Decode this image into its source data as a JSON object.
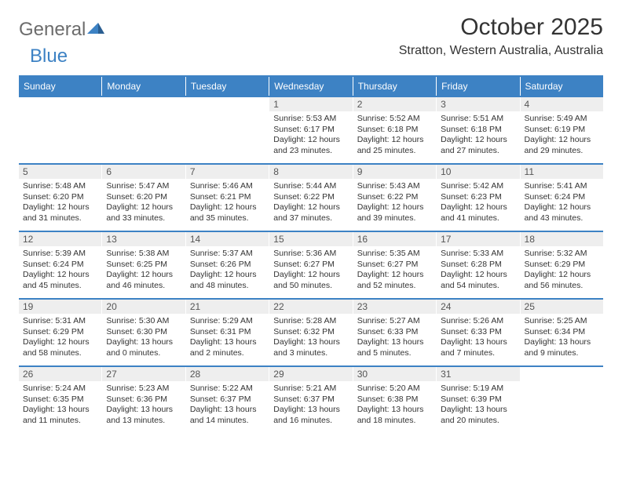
{
  "logo": {
    "word1": "General",
    "word2": "Blue",
    "mark_color": "#3d82c4"
  },
  "title": "October 2025",
  "subtitle": "Stratton, Western Australia, Australia",
  "colors": {
    "header_bg": "#3d82c4",
    "header_text": "#ffffff",
    "daynum_bg": "#eeeeee",
    "rule": "#3d82c4",
    "text": "#333333"
  },
  "dow": [
    "Sunday",
    "Monday",
    "Tuesday",
    "Wednesday",
    "Thursday",
    "Friday",
    "Saturday"
  ],
  "weeks": [
    [
      {
        "n": "",
        "sr": "",
        "ss": "",
        "dl": ""
      },
      {
        "n": "",
        "sr": "",
        "ss": "",
        "dl": ""
      },
      {
        "n": "",
        "sr": "",
        "ss": "",
        "dl": ""
      },
      {
        "n": "1",
        "sr": "5:53 AM",
        "ss": "6:17 PM",
        "dl": "12 hours and 23 minutes."
      },
      {
        "n": "2",
        "sr": "5:52 AM",
        "ss": "6:18 PM",
        "dl": "12 hours and 25 minutes."
      },
      {
        "n": "3",
        "sr": "5:51 AM",
        "ss": "6:18 PM",
        "dl": "12 hours and 27 minutes."
      },
      {
        "n": "4",
        "sr": "5:49 AM",
        "ss": "6:19 PM",
        "dl": "12 hours and 29 minutes."
      }
    ],
    [
      {
        "n": "5",
        "sr": "5:48 AM",
        "ss": "6:20 PM",
        "dl": "12 hours and 31 minutes."
      },
      {
        "n": "6",
        "sr": "5:47 AM",
        "ss": "6:20 PM",
        "dl": "12 hours and 33 minutes."
      },
      {
        "n": "7",
        "sr": "5:46 AM",
        "ss": "6:21 PM",
        "dl": "12 hours and 35 minutes."
      },
      {
        "n": "8",
        "sr": "5:44 AM",
        "ss": "6:22 PM",
        "dl": "12 hours and 37 minutes."
      },
      {
        "n": "9",
        "sr": "5:43 AM",
        "ss": "6:22 PM",
        "dl": "12 hours and 39 minutes."
      },
      {
        "n": "10",
        "sr": "5:42 AM",
        "ss": "6:23 PM",
        "dl": "12 hours and 41 minutes."
      },
      {
        "n": "11",
        "sr": "5:41 AM",
        "ss": "6:24 PM",
        "dl": "12 hours and 43 minutes."
      }
    ],
    [
      {
        "n": "12",
        "sr": "5:39 AM",
        "ss": "6:24 PM",
        "dl": "12 hours and 45 minutes."
      },
      {
        "n": "13",
        "sr": "5:38 AM",
        "ss": "6:25 PM",
        "dl": "12 hours and 46 minutes."
      },
      {
        "n": "14",
        "sr": "5:37 AM",
        "ss": "6:26 PM",
        "dl": "12 hours and 48 minutes."
      },
      {
        "n": "15",
        "sr": "5:36 AM",
        "ss": "6:27 PM",
        "dl": "12 hours and 50 minutes."
      },
      {
        "n": "16",
        "sr": "5:35 AM",
        "ss": "6:27 PM",
        "dl": "12 hours and 52 minutes."
      },
      {
        "n": "17",
        "sr": "5:33 AM",
        "ss": "6:28 PM",
        "dl": "12 hours and 54 minutes."
      },
      {
        "n": "18",
        "sr": "5:32 AM",
        "ss": "6:29 PM",
        "dl": "12 hours and 56 minutes."
      }
    ],
    [
      {
        "n": "19",
        "sr": "5:31 AM",
        "ss": "6:29 PM",
        "dl": "12 hours and 58 minutes."
      },
      {
        "n": "20",
        "sr": "5:30 AM",
        "ss": "6:30 PM",
        "dl": "13 hours and 0 minutes."
      },
      {
        "n": "21",
        "sr": "5:29 AM",
        "ss": "6:31 PM",
        "dl": "13 hours and 2 minutes."
      },
      {
        "n": "22",
        "sr": "5:28 AM",
        "ss": "6:32 PM",
        "dl": "13 hours and 3 minutes."
      },
      {
        "n": "23",
        "sr": "5:27 AM",
        "ss": "6:33 PM",
        "dl": "13 hours and 5 minutes."
      },
      {
        "n": "24",
        "sr": "5:26 AM",
        "ss": "6:33 PM",
        "dl": "13 hours and 7 minutes."
      },
      {
        "n": "25",
        "sr": "5:25 AM",
        "ss": "6:34 PM",
        "dl": "13 hours and 9 minutes."
      }
    ],
    [
      {
        "n": "26",
        "sr": "5:24 AM",
        "ss": "6:35 PM",
        "dl": "13 hours and 11 minutes."
      },
      {
        "n": "27",
        "sr": "5:23 AM",
        "ss": "6:36 PM",
        "dl": "13 hours and 13 minutes."
      },
      {
        "n": "28",
        "sr": "5:22 AM",
        "ss": "6:37 PM",
        "dl": "13 hours and 14 minutes."
      },
      {
        "n": "29",
        "sr": "5:21 AM",
        "ss": "6:37 PM",
        "dl": "13 hours and 16 minutes."
      },
      {
        "n": "30",
        "sr": "5:20 AM",
        "ss": "6:38 PM",
        "dl": "13 hours and 18 minutes."
      },
      {
        "n": "31",
        "sr": "5:19 AM",
        "ss": "6:39 PM",
        "dl": "13 hours and 20 minutes."
      },
      {
        "n": "",
        "sr": "",
        "ss": "",
        "dl": ""
      }
    ]
  ],
  "labels": {
    "sunrise": "Sunrise:",
    "sunset": "Sunset:",
    "daylight": "Daylight:"
  }
}
